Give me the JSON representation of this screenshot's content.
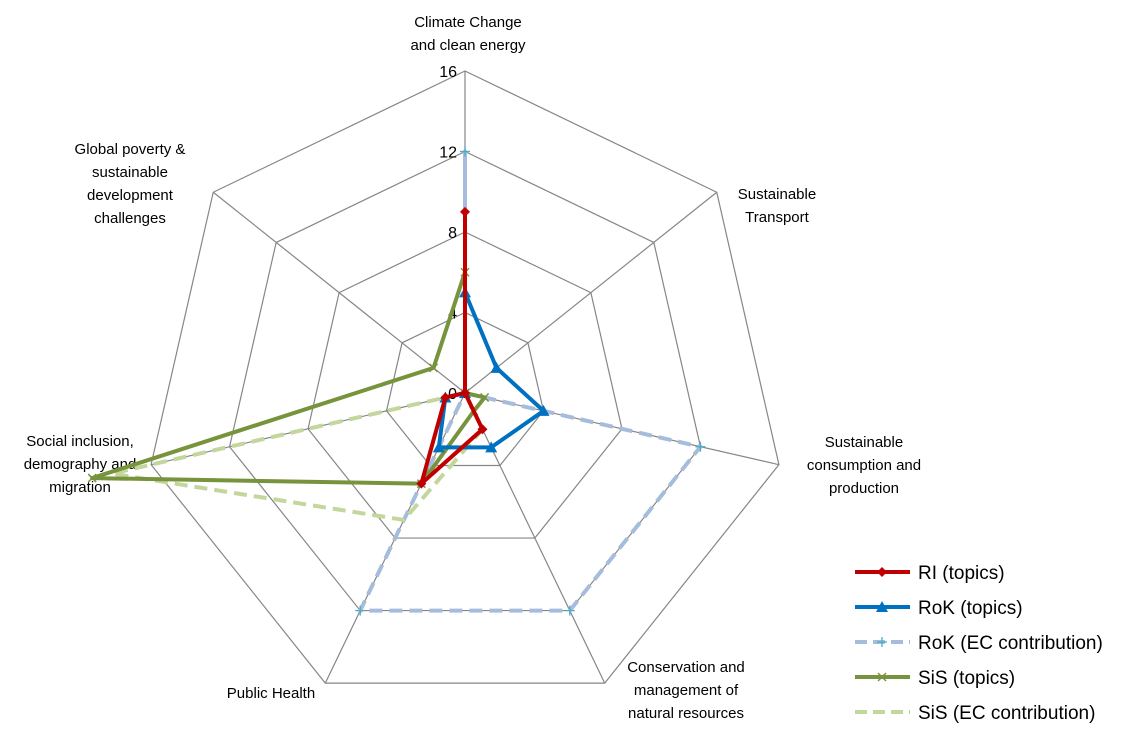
{
  "chart_data": {
    "type": "radar",
    "title": "",
    "rmax": 16,
    "ticks": [
      0,
      4,
      8,
      12,
      16
    ],
    "grid": true,
    "legend_position": "bottom-right",
    "categories": [
      [
        "Climate Change",
        "and clean energy"
      ],
      [
        "Sustainable",
        "Transport"
      ],
      [
        "Sustainable",
        "consumption and",
        "production"
      ],
      [
        "Conservation and",
        "management of",
        "natural resources"
      ],
      [
        "Public Health"
      ],
      [
        "Social inclusion,",
        "demography and",
        "migration"
      ],
      [
        "Global poverty &",
        "sustainable",
        "development",
        "challenges"
      ]
    ],
    "series": [
      {
        "name": "RI (topics)",
        "color": "#C00000",
        "dash": "solid",
        "marker": "diamond",
        "values": [
          9,
          0,
          0,
          2,
          5,
          1,
          0
        ]
      },
      {
        "name": "RoK (topics)",
        "color": "#0070C0",
        "dash": "solid",
        "marker": "triangle",
        "values": [
          5,
          2,
          4,
          3,
          3,
          1,
          0
        ]
      },
      {
        "name": "RoK (EC contribution)",
        "color": "#A6BCDC",
        "dash": "dashed",
        "marker": "plus",
        "values": [
          12,
          0,
          12,
          12,
          12,
          0,
          0
        ]
      },
      {
        "name": "SiS (topics)",
        "color": "#77933C",
        "dash": "solid",
        "marker": "x",
        "values": [
          6,
          0,
          1,
          1,
          5,
          19,
          2
        ]
      },
      {
        "name": "SiS (EC contribution)",
        "color": "#C3D69B",
        "dash": "dashed",
        "marker": "none",
        "values": [
          6,
          0,
          0,
          2,
          7,
          18,
          0
        ]
      }
    ]
  }
}
